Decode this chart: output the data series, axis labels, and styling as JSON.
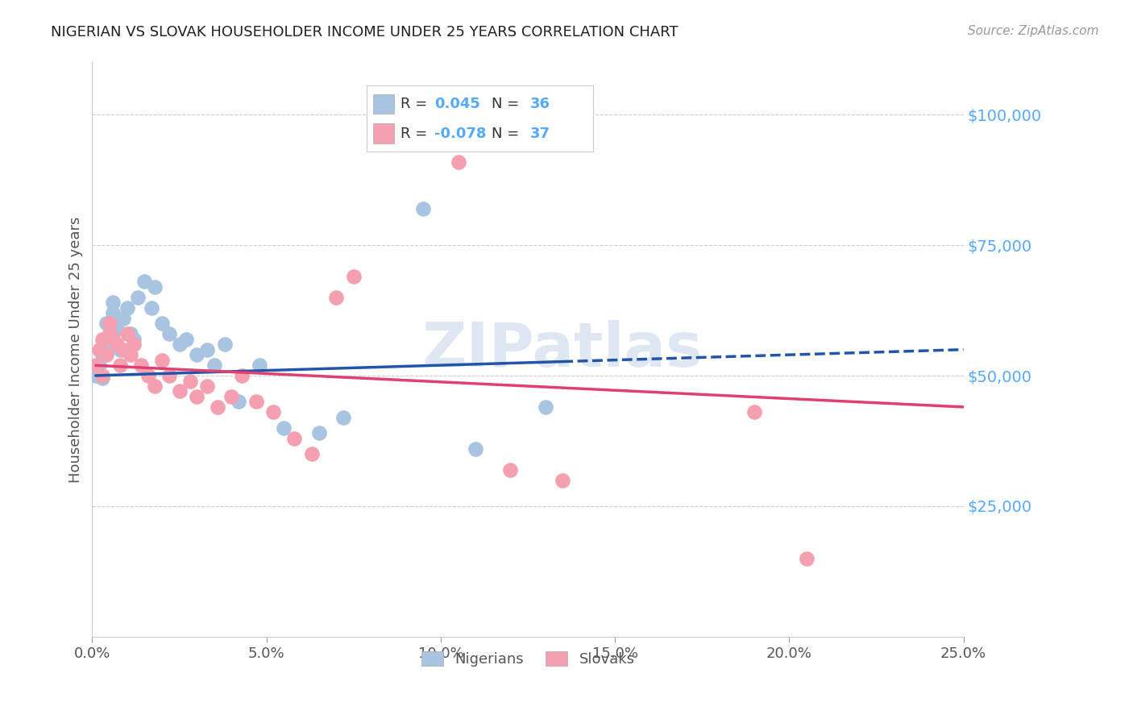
{
  "title": "NIGERIAN VS SLOVAK HOUSEHOLDER INCOME UNDER 25 YEARS CORRELATION CHART",
  "source": "Source: ZipAtlas.com",
  "ylabel": "Householder Income Under 25 years",
  "xlim": [
    0.0,
    0.25
  ],
  "ylim": [
    0,
    110000
  ],
  "xtick_labels": [
    "0.0%",
    "5.0%",
    "10.0%",
    "15.0%",
    "20.0%",
    "25.0%"
  ],
  "xtick_values": [
    0.0,
    0.05,
    0.1,
    0.15,
    0.2,
    0.25
  ],
  "ytick_labels": [
    "$100,000",
    "$75,000",
    "$50,000",
    "$25,000"
  ],
  "ytick_values": [
    100000,
    75000,
    50000,
    25000
  ],
  "nigerians_color": "#a8c4e0",
  "slovaks_color": "#f4a0b0",
  "nigerian_line_color": "#2255aa",
  "slovak_line_color": "#e04070",
  "watermark": "ZIPatlas",
  "background_color": "#ffffff",
  "nigerian_x": [
    0.001,
    0.002,
    0.003,
    0.003,
    0.004,
    0.004,
    0.005,
    0.005,
    0.006,
    0.006,
    0.007,
    0.008,
    0.009,
    0.01,
    0.011,
    0.012,
    0.013,
    0.015,
    0.017,
    0.018,
    0.02,
    0.022,
    0.025,
    0.027,
    0.03,
    0.033,
    0.035,
    0.038,
    0.042,
    0.048,
    0.055,
    0.065,
    0.072,
    0.095,
    0.11,
    0.13
  ],
  "nigerian_y": [
    50000,
    52000,
    49500,
    54000,
    57000,
    60000,
    58000,
    56000,
    62000,
    64000,
    59000,
    55000,
    61000,
    63000,
    58000,
    57000,
    65000,
    68000,
    63000,
    67000,
    60000,
    58000,
    56000,
    57000,
    54000,
    55000,
    52000,
    56000,
    45000,
    52000,
    40000,
    39000,
    42000,
    82000,
    36000,
    44000
  ],
  "slovak_x": [
    0.001,
    0.002,
    0.003,
    0.003,
    0.004,
    0.005,
    0.005,
    0.006,
    0.007,
    0.008,
    0.009,
    0.01,
    0.011,
    0.012,
    0.014,
    0.016,
    0.018,
    0.02,
    0.022,
    0.025,
    0.028,
    0.03,
    0.033,
    0.036,
    0.04,
    0.043,
    0.047,
    0.052,
    0.058,
    0.063,
    0.07,
    0.075,
    0.105,
    0.12,
    0.135,
    0.19,
    0.205
  ],
  "slovak_y": [
    52000,
    55000,
    50000,
    57000,
    54000,
    58000,
    60000,
    57000,
    56000,
    52000,
    55000,
    58000,
    54000,
    56000,
    52000,
    50000,
    48000,
    53000,
    50000,
    47000,
    49000,
    46000,
    48000,
    44000,
    46000,
    50000,
    45000,
    43000,
    38000,
    35000,
    65000,
    69000,
    91000,
    32000,
    30000,
    43000,
    15000
  ],
  "nig_line_start_x": 0.001,
  "nig_line_end_x": 0.135,
  "nig_line_dash_start_x": 0.135,
  "nig_line_dash_end_x": 0.25,
  "slo_line_start_x": 0.001,
  "slo_line_end_x": 0.25
}
